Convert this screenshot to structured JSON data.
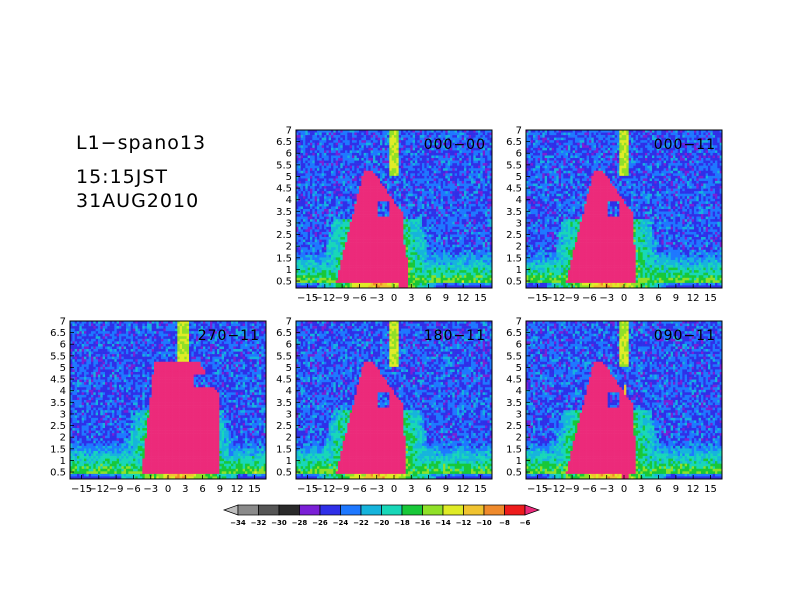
{
  "header": {
    "line1": "L1−spano13",
    "line2": "15:15JST",
    "line3": "31AUG2010"
  },
  "chart_data": {
    "type": "heatmap",
    "panels": [
      {
        "label": "000−00",
        "row": 0,
        "col": 1,
        "xlim": [
          -17,
          17
        ],
        "variant": "000-00"
      },
      {
        "label": "000−11",
        "row": 0,
        "col": 2,
        "xlim": [
          -17,
          17
        ],
        "variant": "000-11"
      },
      {
        "label": "270−11",
        "row": 1,
        "col": 0,
        "xlim": [
          -17,
          17
        ],
        "variant": "270-11"
      },
      {
        "label": "180−11",
        "row": 1,
        "col": 1,
        "xlim": [
          -17,
          17
        ],
        "variant": "180-11"
      },
      {
        "label": "090−11",
        "row": 1,
        "col": 2,
        "xlim": [
          -17,
          17
        ],
        "variant": "090-11"
      }
    ],
    "xticks": [
      -15,
      -12,
      -9,
      -6,
      -3,
      0,
      3,
      6,
      9,
      12,
      15
    ],
    "xtick_labels": [
      "−15",
      "−12",
      "−9",
      "−6",
      "−3",
      "0",
      "3",
      "6",
      "9",
      "12",
      "15"
    ],
    "yticks": [
      0.5,
      1,
      1.5,
      2,
      2.5,
      3,
      3.5,
      4,
      4.5,
      5,
      5.5,
      6,
      6.5,
      7
    ],
    "ytick_labels": [
      "0.5",
      "1",
      "1.5",
      "2",
      "2.5",
      "3",
      "3.5",
      "4",
      "4.5",
      "5",
      "5.5",
      "6",
      "6.5",
      "7"
    ],
    "ylim": [
      0.2,
      7
    ],
    "colorbar": {
      "levels": [
        -34,
        -32,
        -30,
        -28,
        -26,
        -24,
        -22,
        -20,
        -18,
        -16,
        -14,
        -12,
        -10,
        -8,
        -6
      ],
      "level_labels": [
        "−34",
        "−32",
        "−30",
        "−28",
        "−26",
        "−24",
        "−22",
        "−20",
        "−18",
        "−16",
        "−14",
        "−12",
        "−10",
        "−8",
        "−6"
      ],
      "colors": [
        "#bdbdbd",
        "#8a8a8a",
        "#555555",
        "#2a2a2a",
        "#7a1fd6",
        "#2f2fe8",
        "#1e78ff",
        "#16b4dc",
        "#18d7b8",
        "#18c838",
        "#90e028",
        "#dfeb26",
        "#f0c330",
        "#ef8a2c",
        "#ee1c1c",
        "#ec2a7a"
      ]
    }
  }
}
